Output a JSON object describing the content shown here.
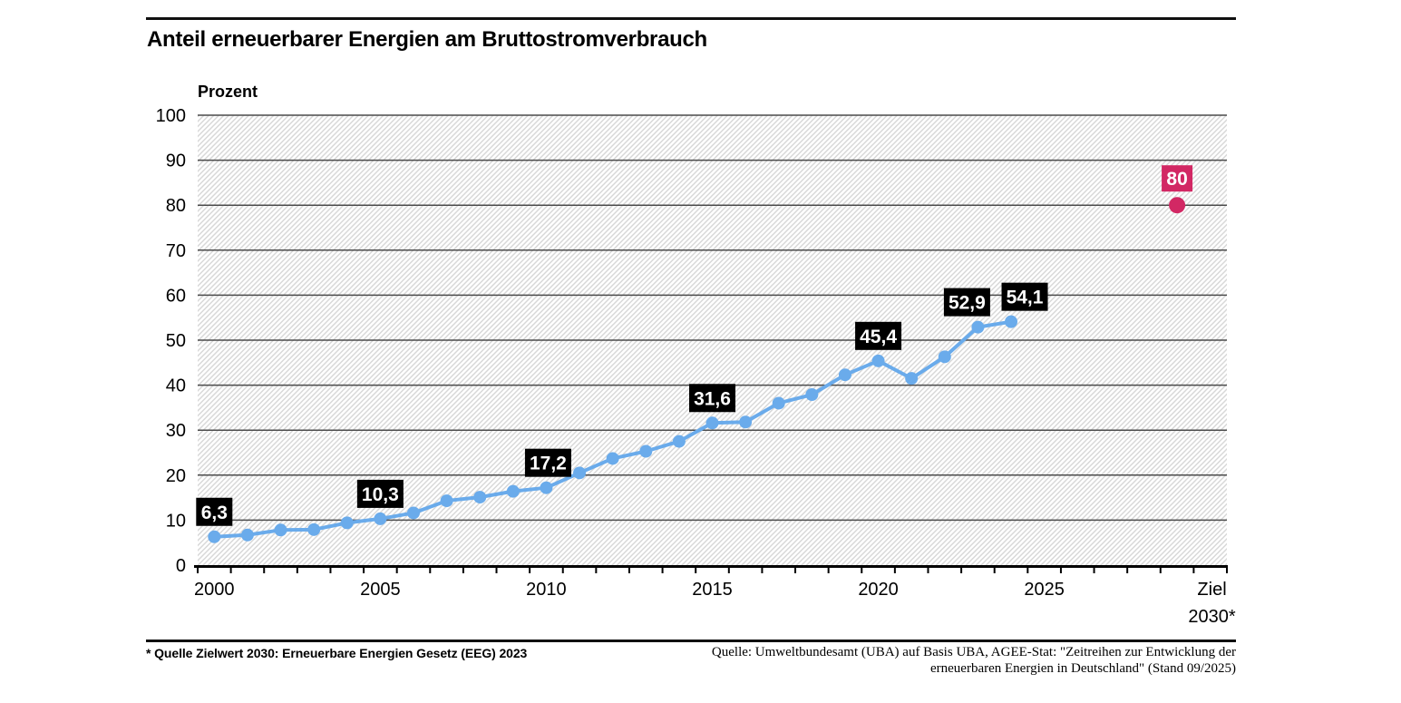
{
  "header": {
    "title": "Anteil erneuerbarer Energien am Bruttostromverbrauch"
  },
  "footer": {
    "footnote_left": "* Quelle Zielwert 2030: Erneuerbare Energien Gesetz (EEG) 2023",
    "source_line1": "Quelle: Umweltbundesamt (UBA) auf Basis UBA, AGEE-Stat: \"Zeitreihen zur Entwicklung der",
    "source_line2": "erneuerbaren Energien in Deutschland\" (Stand 09/2025)"
  },
  "chart_data": {
    "type": "line",
    "title": "Anteil erneuerbarer Energien am Bruttostromverbrauch",
    "xlabel": "",
    "ylabel": "Prozent",
    "ylim": [
      0,
      100
    ],
    "y_ticks": [
      0,
      10,
      20,
      30,
      40,
      50,
      60,
      70,
      80,
      90,
      100
    ],
    "x_range_years": [
      2000,
      2030
    ],
    "x_tick_labels": [
      {
        "year": 2000,
        "label": "2000"
      },
      {
        "year": 2005,
        "label": "2005"
      },
      {
        "year": 2010,
        "label": "2010"
      },
      {
        "year": 2015,
        "label": "2015"
      },
      {
        "year": 2020,
        "label": "2020"
      },
      {
        "year": 2025,
        "label": "2025"
      }
    ],
    "x_axis_end_label_lines": [
      "Ziel",
      "2030*"
    ],
    "grid": true,
    "legend": false,
    "series": [
      {
        "name": "Anteil erneuerbarer Energien am Bruttostromverbrauch",
        "x": [
          2000,
          2001,
          2002,
          2003,
          2004,
          2005,
          2006,
          2007,
          2008,
          2009,
          2010,
          2011,
          2012,
          2013,
          2014,
          2015,
          2016,
          2017,
          2018,
          2019,
          2020,
          2021,
          2022,
          2023,
          2024
        ],
        "values": [
          6.3,
          6.7,
          7.8,
          7.9,
          9.4,
          10.3,
          11.6,
          14.3,
          15.1,
          16.4,
          17.2,
          20.5,
          23.7,
          25.3,
          27.5,
          31.6,
          31.8,
          36.0,
          37.9,
          42.3,
          45.4,
          41.5,
          46.3,
          52.9,
          54.1
        ]
      }
    ],
    "point_labels": [
      {
        "x": 2000,
        "text": "6,3",
        "dx": 0
      },
      {
        "x": 2005,
        "text": "10,3",
        "dx": 0
      },
      {
        "x": 2010,
        "text": "17,2",
        "dx": 2
      },
      {
        "x": 2015,
        "text": "31,6",
        "dx": 0
      },
      {
        "x": 2020,
        "text": "45,4",
        "dx": 0
      },
      {
        "x": 2023,
        "text": "52,9",
        "dx": -12
      },
      {
        "x": 2024,
        "text": "54,1",
        "dx": 15
      }
    ],
    "target_point": {
      "label": "80",
      "value": 80,
      "x_label": "Ziel 2030*"
    },
    "colors": {
      "line": "#6aabeb",
      "target": "#d22864",
      "grid": "#4b4b4b",
      "hatch": "#d8d8d8",
      "axis": "#000000",
      "annotation_bg": "#000000",
      "annotation_text": "#ffffff"
    }
  }
}
